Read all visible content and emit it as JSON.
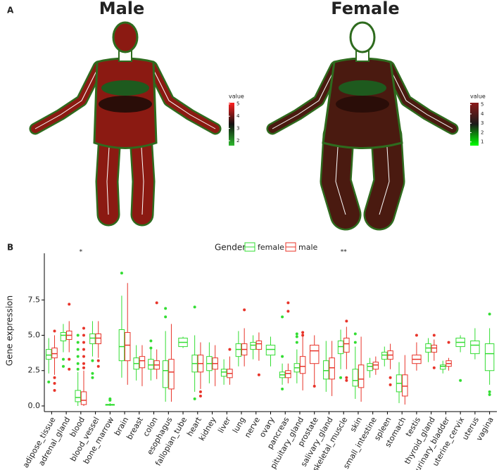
{
  "chart_data": [
    {
      "type": "anatogram",
      "panel": "A",
      "title": "Male",
      "legend_title": "value",
      "colorbar_lim": [
        1.6,
        5.1
      ],
      "colorbar_ticks": [
        2,
        3,
        4,
        5
      ],
      "colors": [
        "#2db82d",
        "#111111",
        "#ff2020"
      ],
      "body_color": "#8b1a12"
    },
    {
      "type": "anatogram",
      "title": "Female",
      "legend_title": "value",
      "colorbar_lim": [
        0.6,
        5.2
      ],
      "colorbar_ticks": [
        1,
        2,
        3,
        4,
        5
      ],
      "colors": [
        "#00ff00",
        "#1a1a1a",
        "#8b1a1a"
      ],
      "body_color": "#4a1a10"
    },
    {
      "type": "boxplot",
      "panel": "B",
      "legend_title": "Gender",
      "y_label": "Gene expression",
      "categories": [
        "adipose_tissue",
        "adrenal_gland",
        "blood",
        "blood_vessel",
        "bone_marrow",
        "brain",
        "breast",
        "colon",
        "esophagus",
        "fallopian_tube",
        "heart",
        "kidney",
        "liver",
        "lung",
        "nerve",
        "ovary",
        "pancreas",
        "pituitary_gland",
        "prostate",
        "salivary_gland",
        "skeletal_muscle",
        "skin",
        "small_intestine",
        "spleen",
        "stomach",
        "testis",
        "thyroid_gland",
        "urinary_bladder",
        "uterine_cervix",
        "uterus",
        "vagina"
      ],
      "ylim": [
        -0.4,
        10.8
      ],
      "yticks": [
        {
          "value": 0,
          "label": "0.0"
        },
        {
          "value": 2.5,
          "label": "2.5"
        },
        {
          "value": 5,
          "label": "5.0"
        },
        {
          "value": 7.5,
          "label": "7.5"
        }
      ],
      "annotations": [
        {
          "category": "blood",
          "text": "*"
        },
        {
          "category": "skeletal_muscle",
          "text": "**"
        }
      ],
      "series": [
        {
          "name": "female",
          "color": "#33dd33",
          "values": [
            [
              2.3,
              3.3,
              3.6,
              4.0,
              4.8
            ],
            [
              3.8,
              4.6,
              5.0,
              5.2,
              5.8
            ],
            [
              0,
              0.3,
              0.6,
              1.1,
              2.4
            ],
            [
              3.5,
              4.4,
              4.8,
              5.1,
              6.0
            ],
            [
              0,
              0.05,
              0.1,
              0.1,
              0.2
            ],
            [
              2.0,
              3.2,
              4.2,
              5.4,
              7.8
            ],
            [
              1.8,
              2.6,
              3.0,
              3.4,
              4.3
            ],
            [
              1.8,
              2.6,
              2.9,
              3.3,
              4.0
            ],
            [
              0.3,
              1.3,
              2.5,
              3.2,
              5.3
            ],
            [
              4.1,
              4.2,
              4.5,
              4.8,
              4.9
            ],
            [
              1.0,
              2.4,
              3.0,
              3.6,
              5.0
            ],
            [
              1.6,
              2.5,
              3.0,
              3.5,
              4.5
            ],
            [
              1.5,
              2.1,
              2.4,
              2.6,
              3.3
            ],
            [
              2.8,
              3.5,
              4.0,
              4.4,
              5.3
            ],
            [
              3.3,
              4.0,
              4.3,
              4.5,
              5.0
            ],
            [
              2.8,
              3.6,
              4.0,
              4.3,
              4.9
            ],
            [
              1.5,
              2.0,
              2.2,
              2.4,
              3.0
            ],
            [
              1.6,
              2.4,
              2.7,
              3.0,
              4.0
            ],
            null,
            [
              1.0,
              1.9,
              2.5,
              3.2,
              4.6
            ],
            [
              2.6,
              3.7,
              4.2,
              4.6,
              5.4
            ],
            [
              0.5,
              1.4,
              1.8,
              2.6,
              4.2
            ],
            [
              2.0,
              2.5,
              2.8,
              3.0,
              3.4
            ],
            [
              2.8,
              3.3,
              3.6,
              3.8,
              4.2
            ],
            [
              0.2,
              1.0,
              1.6,
              2.2,
              3.1
            ],
            null,
            [
              3.1,
              3.8,
              4.1,
              4.4,
              4.8
            ],
            [
              2.3,
              2.6,
              2.8,
              2.9,
              3.2
            ],
            [
              3.8,
              4.2,
              4.5,
              4.8,
              5.0
            ],
            [
              3.3,
              3.7,
              4.3,
              4.6,
              5.5
            ],
            [
              1.5,
              2.5,
              3.7,
              4.4,
              5.5
            ]
          ],
          "outliers": [
            [
              1.7
            ],
            [
              3.3,
              2.8
            ],
            [
              2.6,
              3.0,
              3.5,
              4.0,
              4.5,
              5.0
            ],
            [
              3.2,
              2.3,
              2.0
            ],
            [
              0.4,
              0.5
            ],
            [
              9.4
            ],
            [],
            [
              4.6,
              4.1
            ],
            [
              6.9,
              6.3
            ],
            [],
            [
              7.0,
              0.5
            ],
            [],
            [],
            [],
            [],
            [],
            [
              6.3,
              3.5,
              1.2
            ],
            [
              5.1,
              4.9,
              4.5
            ],
            null,
            [],
            [
              2.0
            ],
            [
              5.1,
              4.5
            ],
            [],
            [],
            [],
            null,
            [],
            [],
            [
              1.8
            ],
            [],
            [
              6.5,
              1.0,
              0.8
            ]
          ]
        },
        {
          "name": "male",
          "color": "#e8342a",
          "values": [
            [
              2.2,
              3.4,
              3.7,
              4.1,
              5.0
            ],
            [
              3.8,
              4.7,
              5.0,
              5.3,
              6.0
            ],
            [
              0,
              0.1,
              0.4,
              1.0,
              2.5
            ],
            [
              3.4,
              4.4,
              4.8,
              5.1,
              6.0
            ],
            null,
            [
              1.5,
              3.2,
              4.3,
              5.2,
              8.7
            ],
            [
              1.4,
              2.7,
              3.2,
              3.5,
              4.3
            ],
            [
              1.9,
              2.6,
              2.9,
              3.2,
              4.0
            ],
            [
              0.3,
              1.2,
              2.4,
              3.3,
              5.8
            ],
            null,
            [
              1.2,
              2.4,
              3.0,
              3.6,
              4.5
            ],
            [
              1.4,
              2.6,
              3.0,
              3.4,
              4.3
            ],
            [
              1.5,
              2.0,
              2.3,
              2.6,
              3.5
            ],
            [
              2.8,
              3.6,
              4.0,
              4.4,
              5.5
            ],
            [
              3.2,
              4.0,
              4.4,
              4.6,
              5.2
            ],
            null,
            [
              1.6,
              2.0,
              2.3,
              2.5,
              3.0
            ],
            [
              1.1,
              2.3,
              2.8,
              3.5,
              5.0
            ],
            [
              1.5,
              3.0,
              3.9,
              4.3,
              5.0
            ],
            [
              0.7,
              1.9,
              2.7,
              3.4,
              4.6
            ],
            [
              2.6,
              3.8,
              4.4,
              4.8,
              5.6
            ],
            [
              0.3,
              1.3,
              1.9,
              2.9,
              4.9
            ],
            [
              2.2,
              2.6,
              2.9,
              3.1,
              3.5
            ],
            [
              2.6,
              3.3,
              3.6,
              3.9,
              4.4
            ],
            [
              0.1,
              0.7,
              1.4,
              2.2,
              3.6
            ],
            [
              2.5,
              3.0,
              3.3,
              3.6,
              4.5
            ],
            [
              3.2,
              3.8,
              4.1,
              4.3,
              4.7
            ],
            [
              2.5,
              2.8,
              3.0,
              3.2,
              3.4
            ],
            null,
            null,
            null
          ],
          "outliers": [
            [
              5.3,
              2.0,
              1.6,
              1.1
            ],
            [
              7.2,
              3.3,
              2.6
            ],
            [
              2.7,
              3.0,
              3.5,
              4.0,
              4.5,
              5.0,
              5.5
            ],
            [
              3.2,
              2.8
            ],
            null,
            [],
            [],
            [
              7.3
            ],
            [],
            null,
            [
              1.0,
              0.7
            ],
            [],
            [
              4.0
            ],
            [
              6.8
            ],
            [
              2.2
            ],
            null,
            [
              7.3,
              6.7
            ],
            [
              5.2,
              5.0
            ],
            [
              1.4
            ],
            [],
            [
              6.0,
              2.0,
              1.8
            ],
            [],
            [],
            [
              2.0,
              1.5
            ],
            [],
            [
              5.0
            ],
            [
              5.0,
              2.7
            ],
            [
              4.5
            ],
            null,
            null,
            null
          ]
        }
      ]
    }
  ]
}
